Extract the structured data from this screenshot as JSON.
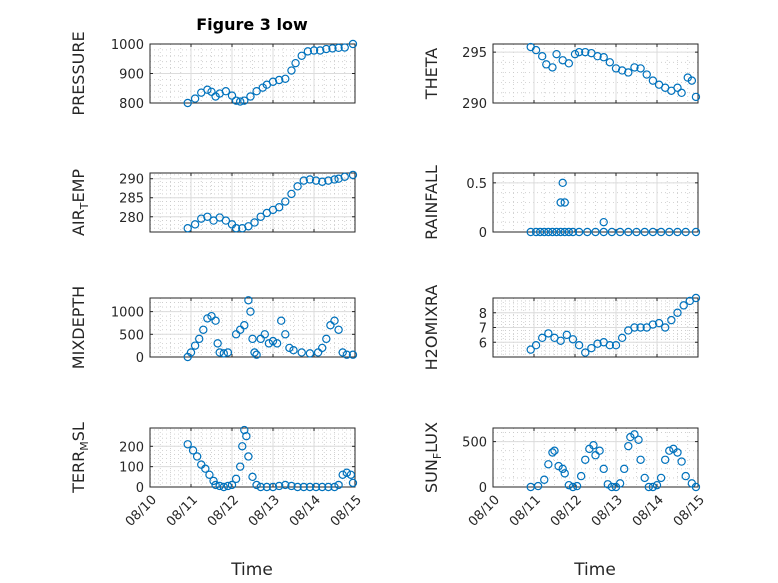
{
  "figure": {
    "title": "Figure 3 low",
    "xlabel_left": "Time",
    "xlabel_right": "Time",
    "marker_color": "#0072BD"
  },
  "chart_data": [
    {
      "type": "scatter",
      "ylabel": "PRESSURE",
      "col": 0,
      "row": 0,
      "xlim": [
        0,
        5
      ],
      "ylim": [
        800,
        1000
      ],
      "yticks": [
        800,
        900,
        1000
      ],
      "yticklabels": [
        "800",
        "900",
        "1000"
      ],
      "x": [
        0.92,
        1.1,
        1.25,
        1.4,
        1.5,
        1.6,
        1.7,
        1.85,
        2.0,
        2.1,
        2.2,
        2.3,
        2.45,
        2.6,
        2.75,
        2.85,
        3.0,
        3.15,
        3.3,
        3.45,
        3.55,
        3.7,
        3.85,
        4.0,
        4.15,
        4.3,
        4.45,
        4.6,
        4.75,
        4.95
      ],
      "y": [
        800,
        815,
        835,
        845,
        838,
        822,
        832,
        840,
        825,
        808,
        805,
        808,
        822,
        840,
        852,
        862,
        872,
        878,
        882,
        910,
        935,
        960,
        975,
        978,
        978,
        983,
        985,
        987,
        988,
        1000
      ]
    },
    {
      "type": "scatter",
      "ylabel": "THETA",
      "col": 1,
      "row": 0,
      "xlim": [
        0,
        5
      ],
      "ylim": [
        290,
        295.8
      ],
      "yticks": [
        290,
        295
      ],
      "yticklabels": [
        "290",
        "295"
      ],
      "x": [
        0.92,
        1.05,
        1.2,
        1.3,
        1.45,
        1.55,
        1.7,
        1.85,
        2.0,
        2.1,
        2.25,
        2.4,
        2.55,
        2.7,
        2.85,
        3.0,
        3.15,
        3.3,
        3.45,
        3.6,
        3.75,
        3.9,
        4.05,
        4.2,
        4.35,
        4.5,
        4.6,
        4.75,
        4.85,
        4.95
      ],
      "y": [
        295.5,
        295.2,
        294.6,
        293.8,
        293.5,
        294.8,
        294.2,
        293.9,
        294.8,
        295.0,
        295.0,
        294.9,
        294.6,
        294.5,
        294.0,
        293.4,
        293.2,
        293.0,
        293.5,
        293.4,
        292.8,
        292.2,
        291.8,
        291.5,
        291.2,
        291.5,
        291.0,
        292.5,
        292.2,
        290.6
      ]
    },
    {
      "type": "scatter",
      "ylabel": "AIR_TEMP",
      "col": 0,
      "row": 1,
      "xlim": [
        0,
        5
      ],
      "ylim": [
        276,
        291.5
      ],
      "yticks": [
        280,
        285,
        290
      ],
      "yticklabels": [
        "280",
        "285",
        "290"
      ],
      "x": [
        0.92,
        1.1,
        1.25,
        1.4,
        1.55,
        1.7,
        1.85,
        2.0,
        2.1,
        2.25,
        2.4,
        2.55,
        2.7,
        2.85,
        3.0,
        3.15,
        3.3,
        3.45,
        3.6,
        3.75,
        3.9,
        4.05,
        4.2,
        4.35,
        4.5,
        4.6,
        4.75,
        4.95
      ],
      "y": [
        277.0,
        278.0,
        279.5,
        280.0,
        279.0,
        279.8,
        279.0,
        278.0,
        277.0,
        277.0,
        277.5,
        278.5,
        280.0,
        281.0,
        281.8,
        282.5,
        284.0,
        286.0,
        288.0,
        289.5,
        289.8,
        289.5,
        289.2,
        289.5,
        289.8,
        290.0,
        290.5,
        291.0
      ]
    },
    {
      "type": "scatter",
      "ylabel": "RAINFALL",
      "col": 1,
      "row": 1,
      "xlim": [
        0,
        5
      ],
      "ylim": [
        0,
        0.6
      ],
      "yticks": [
        0,
        0.5
      ],
      "yticklabels": [
        "0",
        "0.5"
      ],
      "x": [
        0.92,
        1.05,
        1.15,
        1.25,
        1.35,
        1.45,
        1.55,
        1.65,
        1.75,
        1.85,
        1.95,
        2.1,
        2.3,
        2.5,
        2.7,
        2.9,
        3.1,
        3.3,
        3.5,
        3.7,
        3.9,
        4.1,
        4.3,
        4.5,
        4.7,
        4.95,
        1.65,
        1.7,
        1.75,
        2.7
      ],
      "y": [
        0,
        0,
        0,
        0,
        0,
        0,
        0,
        0,
        0,
        0,
        0,
        0,
        0,
        0,
        0,
        0,
        0,
        0,
        0,
        0,
        0,
        0,
        0,
        0,
        0,
        0,
        0.3,
        0.5,
        0.3,
        0.1
      ]
    },
    {
      "type": "scatter",
      "ylabel": "MIXDEPTH",
      "col": 0,
      "row": 2,
      "xlim": [
        0,
        5
      ],
      "ylim": [
        0,
        1300
      ],
      "yticks": [
        0,
        500,
        1000
      ],
      "yticklabels": [
        "0",
        "500",
        "1000"
      ],
      "x": [
        0.92,
        1.0,
        1.1,
        1.2,
        1.3,
        1.4,
        1.5,
        1.6,
        1.65,
        1.7,
        1.8,
        1.9,
        2.1,
        2.2,
        2.3,
        2.4,
        2.45,
        2.5,
        2.55,
        2.6,
        2.7,
        2.8,
        2.9,
        3.0,
        3.1,
        3.2,
        3.3,
        3.4,
        3.5,
        3.7,
        3.9,
        4.1,
        4.2,
        4.3,
        4.4,
        4.5,
        4.6,
        4.7,
        4.8,
        4.95
      ],
      "y": [
        0,
        100,
        250,
        400,
        600,
        850,
        900,
        800,
        300,
        100,
        80,
        100,
        500,
        600,
        700,
        1250,
        1000,
        400,
        100,
        50,
        400,
        500,
        300,
        350,
        300,
        800,
        500,
        200,
        150,
        100,
        80,
        100,
        200,
        400,
        700,
        800,
        600,
        100,
        50,
        50
      ]
    },
    {
      "type": "scatter",
      "ylabel": "H2OMIXRA",
      "col": 1,
      "row": 2,
      "xlim": [
        0,
        5
      ],
      "ylim": [
        5,
        9
      ],
      "yticks": [
        6,
        7,
        8
      ],
      "yticklabels": [
        "6",
        "7",
        "8"
      ],
      "x": [
        0.92,
        1.05,
        1.2,
        1.35,
        1.5,
        1.65,
        1.8,
        1.95,
        2.1,
        2.25,
        2.4,
        2.55,
        2.7,
        2.85,
        3.0,
        3.15,
        3.3,
        3.45,
        3.6,
        3.75,
        3.9,
        4.05,
        4.2,
        4.35,
        4.5,
        4.65,
        4.8,
        4.95
      ],
      "y": [
        5.5,
        5.8,
        6.3,
        6.6,
        6.3,
        6.1,
        6.5,
        6.2,
        5.8,
        5.3,
        5.6,
        5.9,
        6.0,
        5.8,
        5.8,
        6.3,
        6.8,
        7.0,
        7.0,
        7.0,
        7.2,
        7.3,
        7.0,
        7.5,
        8.0,
        8.5,
        8.8,
        9.0
      ]
    },
    {
      "type": "scatter",
      "ylabel": "TERR_MSL",
      "col": 0,
      "row": 3,
      "xlim": [
        0,
        5
      ],
      "ylim": [
        0,
        290
      ],
      "yticks": [
        0,
        100,
        200
      ],
      "yticklabels": [
        "0",
        "100",
        "200"
      ],
      "x": [
        0.92,
        1.05,
        1.15,
        1.25,
        1.35,
        1.45,
        1.55,
        1.6,
        1.7,
        1.8,
        1.9,
        2.0,
        2.1,
        2.2,
        2.25,
        2.3,
        2.35,
        2.4,
        2.5,
        2.6,
        2.7,
        2.85,
        3.0,
        3.15,
        3.3,
        3.45,
        3.6,
        3.75,
        3.9,
        4.05,
        4.2,
        4.35,
        4.5,
        4.6,
        4.7,
        4.8,
        4.9,
        4.95
      ],
      "y": [
        210,
        180,
        150,
        110,
        90,
        60,
        30,
        10,
        5,
        0,
        5,
        10,
        40,
        100,
        200,
        280,
        250,
        150,
        50,
        10,
        0,
        0,
        0,
        5,
        10,
        5,
        0,
        0,
        0,
        0,
        0,
        0,
        0,
        10,
        60,
        70,
        60,
        20
      ]
    },
    {
      "type": "scatter",
      "ylabel": "SUN_FLUX",
      "col": 1,
      "row": 3,
      "xlim": [
        0,
        5
      ],
      "ylim": [
        0,
        650
      ],
      "yticks": [
        0,
        500
      ],
      "yticklabels": [
        "0",
        "500"
      ],
      "x": [
        0.92,
        1.1,
        1.25,
        1.35,
        1.45,
        1.5,
        1.6,
        1.7,
        1.75,
        1.85,
        1.95,
        2.05,
        2.15,
        2.25,
        2.35,
        2.45,
        2.5,
        2.6,
        2.7,
        2.8,
        2.9,
        3.0,
        3.1,
        3.2,
        3.3,
        3.35,
        3.45,
        3.55,
        3.6,
        3.7,
        3.8,
        3.9,
        4.0,
        4.1,
        4.2,
        4.3,
        4.4,
        4.5,
        4.6,
        4.7,
        4.85,
        4.95
      ],
      "y": [
        0,
        10,
        80,
        250,
        380,
        400,
        230,
        200,
        150,
        20,
        0,
        10,
        120,
        300,
        420,
        460,
        350,
        400,
        200,
        30,
        0,
        0,
        40,
        200,
        450,
        550,
        580,
        520,
        300,
        100,
        0,
        0,
        20,
        100,
        300,
        400,
        420,
        380,
        280,
        120,
        40,
        0
      ]
    }
  ],
  "x_axis": {
    "ticks": [
      0,
      1,
      2,
      3,
      4,
      5
    ],
    "ticklabels": [
      "08/10",
      "08/11",
      "08/12",
      "08/13",
      "08/14",
      "08/15"
    ]
  }
}
